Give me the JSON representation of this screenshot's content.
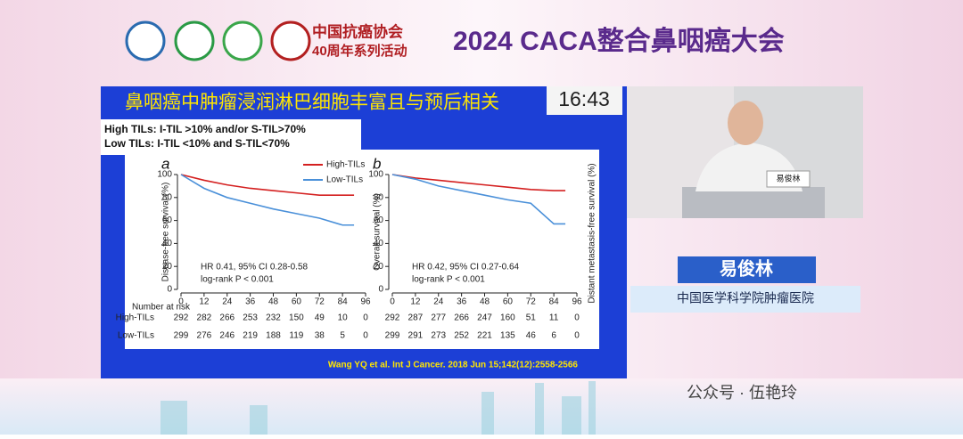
{
  "header": {
    "org": "中国抗癌协会",
    "org_sub": "40周年系列活动",
    "event": "2024 CACA整合鼻咽癌大会"
  },
  "slide": {
    "title": "鼻咽癌中肿瘤浸润淋巴细胞丰富且与预后相关",
    "timer": "16:43",
    "definitions": [
      "High TILs: I-TIL >10% and/or S-TIL>70%",
      "Low TILs: I-TIL <10% and S-TIL<70%"
    ],
    "partial_axis_label": "Distant metastasis-free survival (%)",
    "citation": "Wang YQ et al. Int J Cancer. 2018 Jun 15;142(12):2558-2566"
  },
  "chart_data": [
    {
      "type": "line",
      "panel": "a",
      "y_label": "Disease-free survival (%)",
      "annotations": [
        "HR 0.41, 95% CI 0.28-0.58",
        "log-rank P < 0.001"
      ],
      "x": [
        0,
        12,
        24,
        36,
        48,
        60,
        72,
        84,
        90
      ],
      "series": [
        {
          "name": "High-TILs",
          "color": "#d42020",
          "values": [
            100,
            95,
            91,
            88,
            86,
            84,
            82,
            82,
            82
          ]
        },
        {
          "name": "Low-TILs",
          "color": "#4a90d9",
          "values": [
            100,
            88,
            80,
            75,
            70,
            66,
            62,
            56,
            56
          ]
        }
      ],
      "legend": "upper right",
      "xlim": [
        0,
        96
      ],
      "ylim": [
        0,
        100
      ],
      "xticks": [
        0,
        12,
        24,
        36,
        48,
        60,
        72,
        84,
        96
      ],
      "yticks": [
        0,
        20,
        40,
        60,
        80,
        100
      ],
      "risk_table": {
        "title": "Number at risk",
        "rows": [
          {
            "name": "High-TILs",
            "values": [
              292,
              282,
              266,
              253,
              232,
              150,
              49,
              10,
              0
            ]
          },
          {
            "name": "Low-TILs",
            "values": [
              299,
              276,
              246,
              219,
              188,
              119,
              38,
              5,
              0
            ]
          }
        ]
      }
    },
    {
      "type": "line",
      "panel": "b",
      "y_label": "Overall survival (%)",
      "annotations": [
        "HR 0.42, 95% CI 0.27-0.64",
        "log-rank P < 0.001"
      ],
      "x": [
        0,
        12,
        24,
        36,
        48,
        60,
        72,
        84,
        90
      ],
      "series": [
        {
          "name": "High-TILs",
          "color": "#d42020",
          "values": [
            100,
            97,
            95,
            93,
            91,
            89,
            87,
            86,
            86
          ]
        },
        {
          "name": "Low-TILs",
          "color": "#4a90d9",
          "values": [
            100,
            96,
            90,
            86,
            82,
            78,
            75,
            57,
            57
          ]
        }
      ],
      "legend": false,
      "xlim": [
        0,
        96
      ],
      "ylim": [
        0,
        100
      ],
      "xticks": [
        0,
        12,
        24,
        36,
        48,
        60,
        72,
        84,
        96
      ],
      "yticks": [
        0,
        20,
        40,
        60,
        80,
        100
      ],
      "risk_table": {
        "rows": [
          {
            "values": [
              292,
              287,
              277,
              266,
              247,
              160,
              51,
              11,
              0
            ]
          },
          {
            "values": [
              299,
              291,
              273,
              252,
              221,
              135,
              46,
              6,
              0
            ]
          }
        ]
      }
    }
  ],
  "speaker": {
    "name": "易俊林",
    "affiliation": "中国医学科学院肿瘤医院"
  },
  "watermark": "公众号 · 伍艳玲"
}
